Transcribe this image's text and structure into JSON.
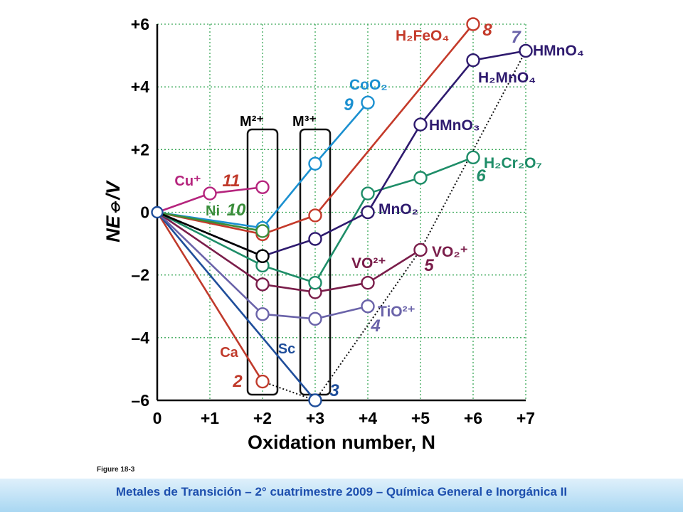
{
  "figure_label": "Figure 18-3",
  "footer": "Metales de Transición – 2° cuatrimestre 2009 – Química General e Inorgánica II",
  "chart_data": {
    "type": "line",
    "title": "",
    "xlabel": "Oxidation number, N",
    "ylabel": "NE⦵/V",
    "xlim": [
      0,
      7
    ],
    "ylim": [
      -6,
      6
    ],
    "x_ticks": [
      "0",
      "+1",
      "+2",
      "+3",
      "+4",
      "+5",
      "+6",
      "+7"
    ],
    "y_ticks": [
      "+6",
      "+4",
      "+2",
      "0",
      "–2",
      "–4",
      "–6"
    ],
    "grid": true,
    "group_boxes": [
      {
        "label": "M²⁺",
        "x": 2
      },
      {
        "label": "M³⁺",
        "x": 3
      }
    ],
    "series": [
      {
        "color": "#c03a2b",
        "points": [
          [
            0,
            0
          ],
          [
            2,
            -5.4
          ]
        ],
        "number": "2",
        "element": "Ca"
      },
      {
        "color": "#1f4e9b",
        "points": [
          [
            0,
            0
          ],
          [
            3,
            -6.0
          ]
        ],
        "number": "3",
        "element": "Sc"
      },
      {
        "color": "#6a63a9",
        "points": [
          [
            0,
            0
          ],
          [
            2,
            -3.25
          ],
          [
            3,
            -3.4
          ],
          [
            4,
            -3.0
          ]
        ],
        "number": "4"
      },
      {
        "color": "#7a1d4a",
        "points": [
          [
            0,
            0
          ],
          [
            2,
            -2.3
          ],
          [
            3,
            -2.55
          ],
          [
            4,
            -2.25
          ],
          [
            5,
            -1.2
          ]
        ],
        "number": "5"
      },
      {
        "color": "#1e8d68",
        "points": [
          [
            0,
            0
          ],
          [
            2,
            -1.7
          ],
          [
            3,
            -2.25
          ],
          [
            4,
            0.6
          ],
          [
            5,
            1.1
          ],
          [
            6,
            1.75
          ]
        ],
        "number": "6"
      },
      {
        "color": "#2e1a6e",
        "points": [
          [
            0,
            0
          ],
          [
            2,
            -1.4
          ],
          [
            3,
            -0.85
          ],
          [
            4,
            0
          ],
          [
            5,
            2.8
          ],
          [
            6,
            4.85
          ],
          [
            7,
            5.15
          ]
        ],
        "number": "7"
      },
      {
        "color": "#c43a2a",
        "points": [
          [
            0,
            0
          ],
          [
            2,
            -0.7
          ],
          [
            3,
            -0.1
          ],
          [
            6,
            6.0
          ]
        ],
        "number": "8"
      },
      {
        "color": "#1b90d0",
        "points": [
          [
            0,
            0
          ],
          [
            2,
            -0.5
          ],
          [
            3,
            1.55
          ],
          [
            4,
            3.5
          ]
        ],
        "number": "9"
      },
      {
        "color": "#3a8d3a",
        "points": [
          [
            0,
            0
          ],
          [
            2,
            -0.6
          ]
        ],
        "number": "10",
        "element": "Ni"
      },
      {
        "color": "#b5247d",
        "points": [
          [
            0,
            0
          ],
          [
            1,
            0.6
          ],
          [
            2,
            0.8
          ]
        ],
        "number": "11",
        "element": "Cu⁺"
      },
      {
        "color": "#000000",
        "points": [
          [
            0,
            0
          ],
          [
            2,
            -1.4
          ]
        ]
      }
    ],
    "dotted_boundary": [
      [
        2,
        -5.4
      ],
      [
        3,
        -6.0
      ],
      [
        5,
        -1.2
      ],
      [
        7,
        5.15
      ]
    ],
    "species_labels": [
      {
        "text": "H₂FeO₄",
        "color": "#c43a2a"
      },
      {
        "text": "HMnO₄",
        "color": "#2e1a6e"
      },
      {
        "text": "H₂MnO₄",
        "color": "#2e1a6e"
      },
      {
        "text": "CoO₂",
        "color": "#1b90d0"
      },
      {
        "text": "HMnO₃",
        "color": "#2e1a6e"
      },
      {
        "text": "H₂Cr₂O₇",
        "color": "#1e8d68"
      },
      {
        "text": "MnO₂",
        "color": "#2e1a6e"
      },
      {
        "text": "VO²⁺",
        "color": "#7a1d4a"
      },
      {
        "text": "VO₂⁺",
        "color": "#7a1d4a"
      },
      {
        "text": "TiO²⁺",
        "color": "#6a63a9"
      }
    ]
  }
}
